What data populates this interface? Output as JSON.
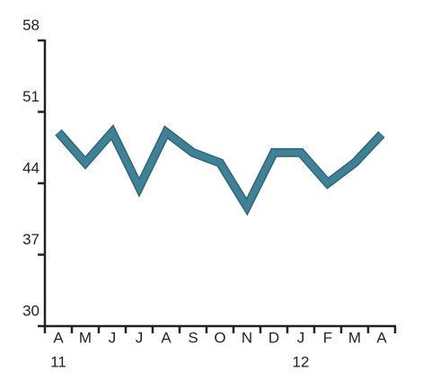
{
  "chart_data": {
    "type": "line",
    "categories": [
      "A",
      "M",
      "J",
      "J",
      "A",
      "S",
      "O",
      "N",
      "D",
      "J",
      "F",
      "M",
      "A"
    ],
    "x_year_labels": [
      "11",
      null,
      null,
      null,
      null,
      null,
      null,
      null,
      null,
      "12",
      null,
      null,
      null
    ],
    "series": [
      {
        "color": "#3f8297",
        "values": [
          49,
          46,
          49,
          43.6,
          49,
          47,
          46,
          41.7,
          47,
          47,
          44,
          46,
          48.8
        ]
      }
    ],
    "ylim": [
      30,
      58
    ],
    "yticks": [
      30,
      37,
      44,
      51,
      58
    ]
  }
}
